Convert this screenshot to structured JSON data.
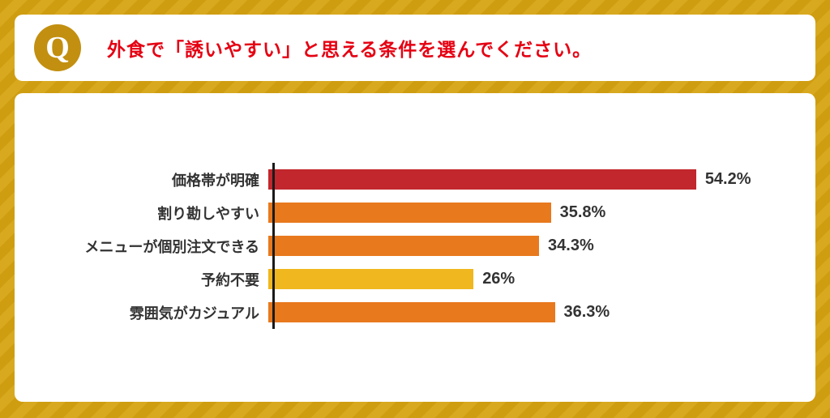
{
  "header": {
    "q_label": "Q",
    "question": "外食で「誘いやすい」と思える条件を選んでください。"
  },
  "chart_data": {
    "type": "bar",
    "orientation": "horizontal",
    "title": "",
    "categories": [
      "価格帯が明確",
      "割り勘しやすい",
      "メニューが個別注文できる",
      "予約不要",
      "雰囲気がカジュアル"
    ],
    "values": [
      54.2,
      35.8,
      34.3,
      26,
      36.3
    ],
    "value_labels": [
      "54.2%",
      "35.8%",
      "34.3%",
      "26%",
      "36.3%"
    ],
    "bar_colors": [
      "#c1272d",
      "#e8791d",
      "#e8791d",
      "#f0b71e",
      "#e8791d"
    ],
    "xlim": [
      0,
      65
    ],
    "grid": false,
    "legend": false,
    "value_label_position": "end-of-bar"
  },
  "colors": {
    "background_base": "#d8a91f",
    "background_stripe": "#cf9d10",
    "card_background": "#ffffff",
    "question_text": "#e50012",
    "q_circle": "#c28f10",
    "q_letter": "#ffffff",
    "axis": "#1a1a1a",
    "label_text": "#333333"
  }
}
